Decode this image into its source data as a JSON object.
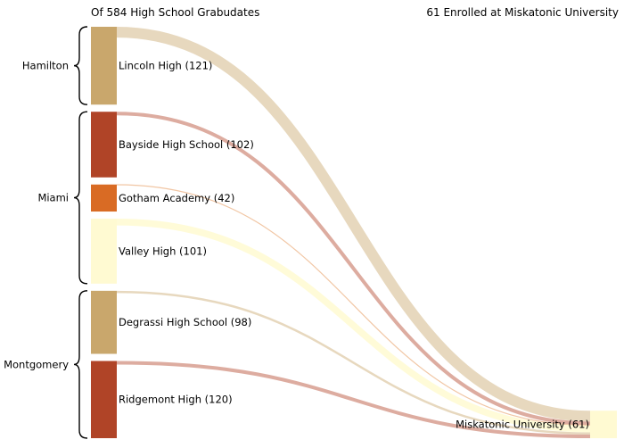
{
  "chart_data": {
    "type": "sankey",
    "left_title": "Of 584 High School Grabudates",
    "right_title": "61 Enrolled at Miskatonic University",
    "groups": [
      {
        "name": "Hamilton",
        "schools": [
          0
        ]
      },
      {
        "name": "Miami",
        "schools": [
          1,
          2,
          3
        ]
      },
      {
        "name": "Montgomery",
        "schools": [
          4,
          5
        ]
      }
    ],
    "schools": [
      {
        "label": "Lincoln High (121)",
        "value": 121,
        "enrolled": 24,
        "color": "#c9a76c",
        "link_color": "#e6d6bb"
      },
      {
        "label": "Bayside High School (102)",
        "value": 102,
        "enrolled": 8,
        "color": "#b04427",
        "link_color": "#dba89b"
      },
      {
        "label": "Gotham Academy (42)",
        "value": 42,
        "enrolled": 1,
        "color": "#d96b24",
        "link_color": "#f0c39f"
      },
      {
        "label": "Valley High (101)",
        "value": 101,
        "enrolled": 15,
        "color": "#fffad2",
        "link_color": "#fffbd6"
      },
      {
        "label": "Degrassi High School (98)",
        "value": 98,
        "enrolled": 5,
        "color": "#c9a76c",
        "link_color": "#e6d6bb"
      },
      {
        "label": "Ridgemont High (120)",
        "value": 120,
        "enrolled": 8,
        "color": "#b04427",
        "link_color": "#dba89b"
      }
    ],
    "target": {
      "label": "Miskatonic University (61)",
      "value": 61,
      "color": "#fffad2"
    }
  }
}
